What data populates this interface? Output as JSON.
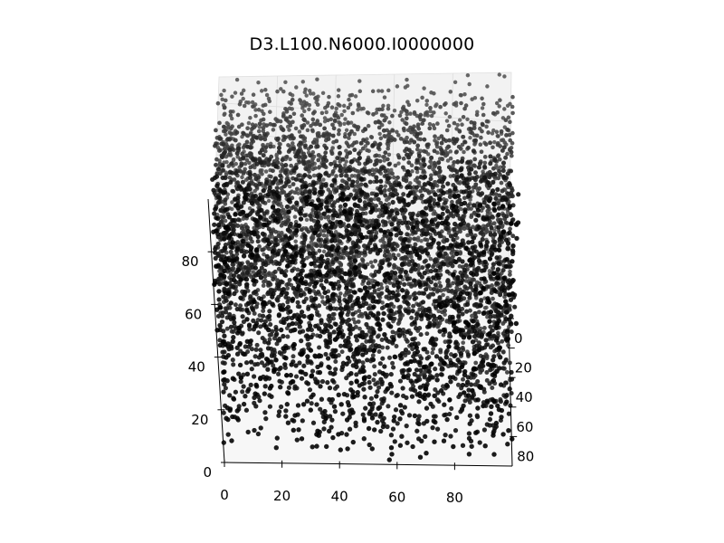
{
  "chart_data": {
    "type": "scatter",
    "projection": "3d",
    "title": "D3.L100.N6000.I0000000",
    "point_count": 6000,
    "marker_color": "#000000",
    "pane_color": "#f2f2f2",
    "xlim": [
      0,
      100
    ],
    "ylim": [
      0,
      100
    ],
    "zlim": [
      0,
      100
    ],
    "x_ticks": [
      "0",
      "20",
      "40",
      "60",
      "80"
    ],
    "y_ticks": [
      "0",
      "20",
      "40",
      "60",
      "80"
    ],
    "z_ticks": [
      "0",
      "20",
      "40",
      "60",
      "80"
    ],
    "xlabel": "",
    "ylabel": "",
    "zlabel": "",
    "grid": true,
    "distribution": "uniform-random"
  }
}
